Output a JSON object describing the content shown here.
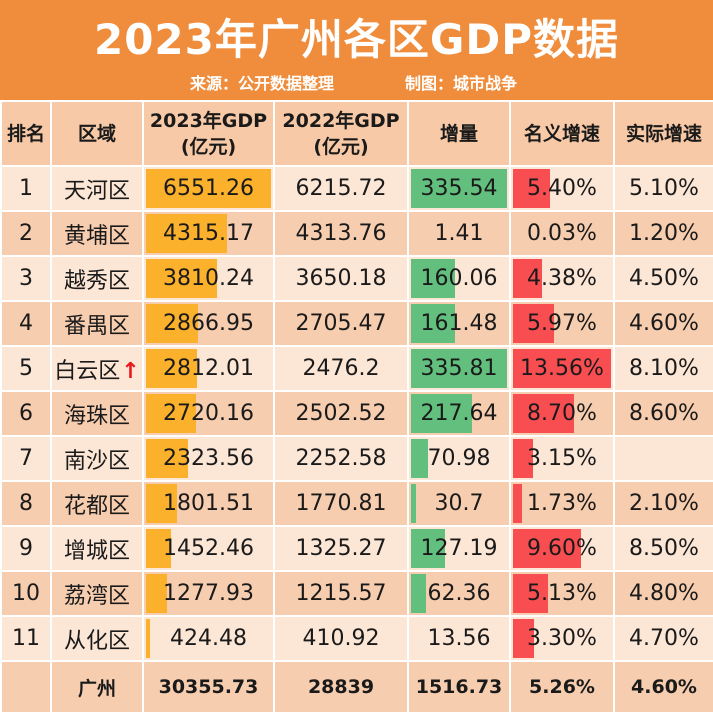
{
  "header": {
    "title": "2023年广州各区GDP数据",
    "source": "来源：公开数据整理",
    "maker": "制图：城市战争"
  },
  "columns": [
    "排名",
    "区域",
    "2023年GDP\n(亿元)",
    "2022年GDP\n(亿元)",
    "增量",
    "名义增速",
    "实际增速"
  ],
  "rows": [
    {
      "rank": "1",
      "district": "天河区",
      "gdp2023": "6551.26",
      "gdp2022": "6215.72",
      "increase": "335.54",
      "nominal": "5.40%",
      "real": "5.10%",
      "gdp_value": 6551.26,
      "inc_value": 335.54,
      "nominal_value": 5.4
    },
    {
      "rank": "2",
      "district": "黄埔区",
      "gdp2023": "4315.17",
      "gdp2022": "4313.76",
      "increase": "1.41",
      "nominal": "0.03%",
      "real": "1.20%",
      "gdp_value": 4315.17,
      "inc_value": 1.41,
      "nominal_value": 0.03
    },
    {
      "rank": "3",
      "district": "越秀区",
      "gdp2023": "3810.24",
      "gdp2022": "3650.18",
      "increase": "160.06",
      "nominal": "4.38%",
      "real": "4.50%",
      "gdp_value": 3810.24,
      "inc_value": 160.06,
      "nominal_value": 4.38
    },
    {
      "rank": "4",
      "district": "番禺区",
      "gdp2023": "2866.95",
      "gdp2022": "2705.47",
      "increase": "161.48",
      "nominal": "5.97%",
      "real": "4.60%",
      "gdp_value": 2866.95,
      "inc_value": 161.48,
      "nominal_value": 5.97
    },
    {
      "rank": "5",
      "district": "白云区",
      "gdp2023": "2812.01",
      "gdp2022": "2476.2",
      "increase": "335.81",
      "nominal": "13.56%",
      "real": "8.10%",
      "gdp_value": 2812.01,
      "inc_value": 335.81,
      "nominal_value": 13.56,
      "arrow": "↑"
    },
    {
      "rank": "6",
      "district": "海珠区",
      "gdp2023": "2720.16",
      "gdp2022": "2502.52",
      "increase": "217.64",
      "nominal": "8.70%",
      "real": "8.60%",
      "gdp_value": 2720.16,
      "inc_value": 217.64,
      "nominal_value": 8.7
    },
    {
      "rank": "7",
      "district": "南沙区",
      "gdp2023": "2323.56",
      "gdp2022": "2252.58",
      "increase": "70.98",
      "nominal": "3.15%",
      "real": "",
      "gdp_value": 2323.56,
      "inc_value": 70.98,
      "nominal_value": 3.15
    },
    {
      "rank": "8",
      "district": "花都区",
      "gdp2023": "1801.51",
      "gdp2022": "1770.81",
      "increase": "30.7",
      "nominal": "1.73%",
      "real": "2.10%",
      "gdp_value": 1801.51,
      "inc_value": 30.7,
      "nominal_value": 1.73
    },
    {
      "rank": "9",
      "district": "增城区",
      "gdp2023": "1452.46",
      "gdp2022": "1325.27",
      "increase": "127.19",
      "nominal": "9.60%",
      "real": "8.50%",
      "gdp_value": 1452.46,
      "inc_value": 127.19,
      "nominal_value": 9.6
    },
    {
      "rank": "10",
      "district": "荔湾区",
      "gdp2023": "1277.93",
      "gdp2022": "1215.57",
      "increase": "62.36",
      "nominal": "5.13%",
      "real": "4.80%",
      "gdp_value": 1277.93,
      "inc_value": 62.36,
      "nominal_value": 5.13
    },
    {
      "rank": "11",
      "district": "从化区",
      "gdp2023": "424.48",
      "gdp2022": "410.92",
      "increase": "13.56",
      "nominal": "3.30%",
      "real": "4.70%",
      "gdp_value": 424.48,
      "inc_value": 13.56,
      "nominal_value": 3.3
    }
  ],
  "total": {
    "rank": "",
    "district": "广州",
    "gdp2023": "30355.73",
    "gdp2022": "28839",
    "increase": "1516.73",
    "nominal": "5.26%",
    "real": "4.60%"
  },
  "colors": {
    "banner": "#ef8d3c",
    "gdp_bar": "#fbb12c",
    "increase_bar": "#62bf7d",
    "nominal_bar": "#f84d51",
    "row_light": "#fce6d6",
    "row_dark": "#f7cdaf",
    "arrow": "#e8181c"
  }
}
